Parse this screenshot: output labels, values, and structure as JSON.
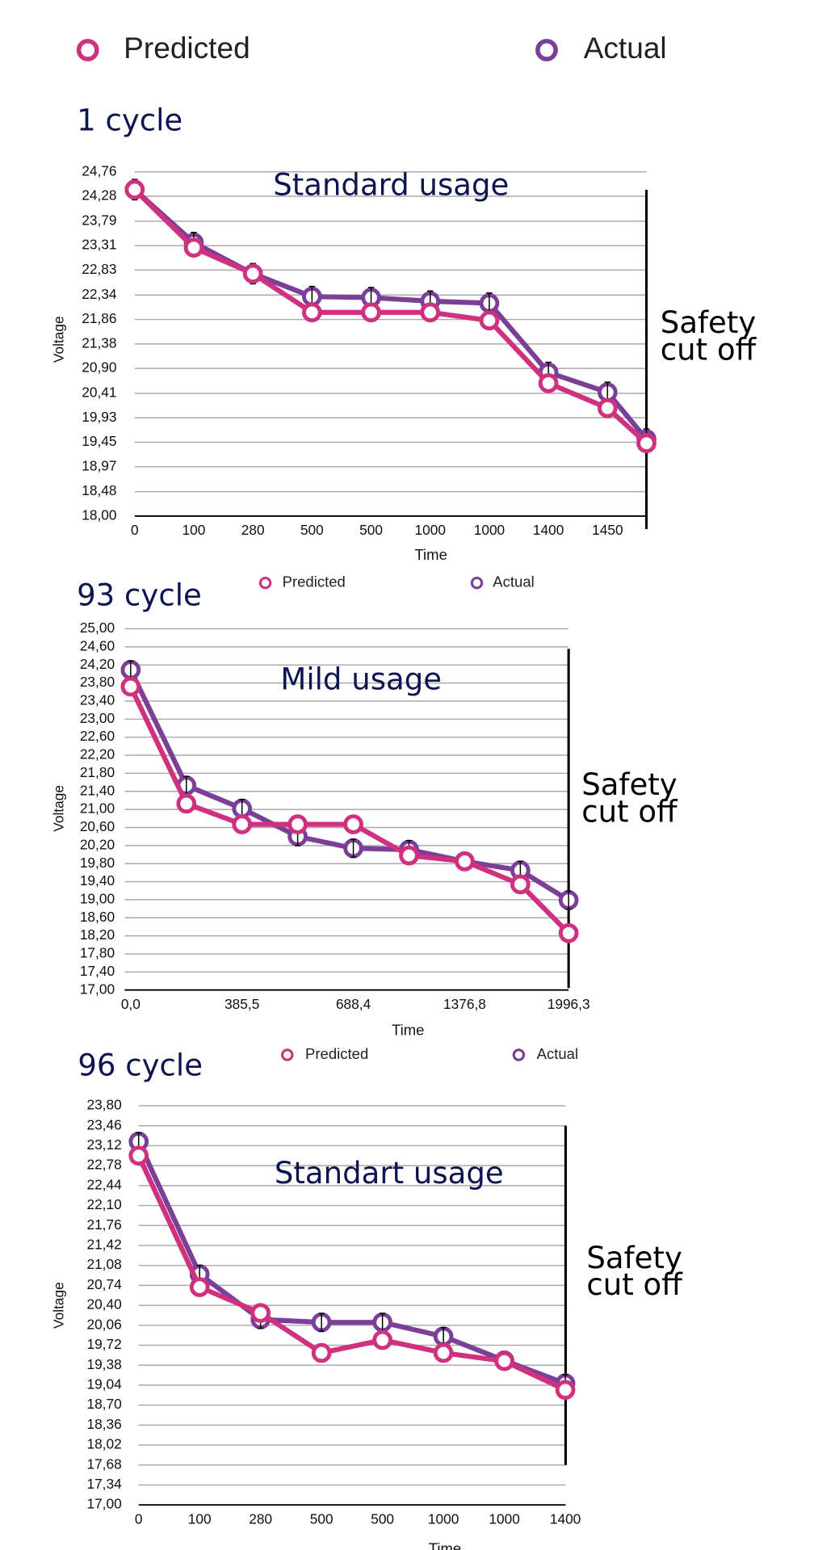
{
  "chart_data": [
    {
      "type": "line",
      "title": "1 cycle",
      "annotation": "Standard usage",
      "side_annotation": [
        "Safety",
        "cut off"
      ],
      "x_label": "Time",
      "y_label": "Voltage",
      "categories": [
        "0",
        "100",
        "280",
        "500",
        "500",
        "1000",
        "1000",
        "1400",
        "1450",
        null
      ],
      "ylim": [
        18,
        24.76
      ],
      "yticks": [
        {
          "value": 18,
          "label": "18,00"
        },
        {
          "value": 18.48,
          "label": "18,48"
        },
        {
          "value": 18.97,
          "label": "18,97"
        },
        {
          "value": 19.45,
          "label": "19,45"
        },
        {
          "value": 19.93,
          "label": "19,93"
        },
        {
          "value": 20.41,
          "label": "20,41"
        },
        {
          "value": 20.9,
          "label": "20,90"
        },
        {
          "value": 21.38,
          "label": "21,38"
        },
        {
          "value": 21.86,
          "label": "21,86"
        },
        {
          "value": 22.34,
          "label": "22,34"
        },
        {
          "value": 22.83,
          "label": "22,83"
        },
        {
          "value": 23.31,
          "label": "23,31"
        },
        {
          "value": 23.79,
          "label": "23,79"
        },
        {
          "value": 24.28,
          "label": "24,28"
        },
        {
          "value": 24.76,
          "label": "24,76"
        }
      ],
      "grid": true,
      "series": [
        {
          "name": "Predicted",
          "color": "#d0317f",
          "values": [
            24.41,
            23.27,
            22.76,
            22.0,
            22.0,
            22.0,
            21.84,
            20.61,
            20.12,
            19.43
          ]
        },
        {
          "name": "Actual",
          "color": "#7b3f98",
          "values": [
            24.41,
            23.37,
            22.76,
            22.31,
            22.29,
            22.22,
            22.18,
            20.82,
            20.43,
            19.51
          ],
          "errors": [
            0.2,
            0.2,
            0.2,
            0.2,
            0.2,
            0.2,
            0.2,
            0.2,
            0.2,
            0.2
          ]
        }
      ]
    },
    {
      "type": "line",
      "title": "93 cycle",
      "annotation": "Mild usage",
      "side_annotation": [
        "Safety",
        "cut off"
      ],
      "x_label": "Time",
      "y_label": "Voltage",
      "categories": [
        "0,0",
        null,
        "385,5",
        null,
        "688,4",
        null,
        "1376,8",
        null,
        "1996,3"
      ],
      "ylim": [
        17,
        25
      ],
      "yticks": [
        {
          "value": 17,
          "label": "17,00"
        },
        {
          "value": 17.4,
          "label": "17,40"
        },
        {
          "value": 17.8,
          "label": "17,80"
        },
        {
          "value": 18.2,
          "label": "18,20"
        },
        {
          "value": 18.6,
          "label": "18,60"
        },
        {
          "value": 19,
          "label": "19,00"
        },
        {
          "value": 19.4,
          "label": "19,40"
        },
        {
          "value": 19.8,
          "label": "19,80"
        },
        {
          "value": 20.2,
          "label": "20,20"
        },
        {
          "value": 20.6,
          "label": "20,60"
        },
        {
          "value": 21,
          "label": "21,00"
        },
        {
          "value": 21.4,
          "label": "21,40"
        },
        {
          "value": 21.8,
          "label": "21,80"
        },
        {
          "value": 22.2,
          "label": "22,20"
        },
        {
          "value": 22.6,
          "label": "22,60"
        },
        {
          "value": 23,
          "label": "23,00"
        },
        {
          "value": 23.4,
          "label": "23,40"
        },
        {
          "value": 23.8,
          "label": "23,80"
        },
        {
          "value": 24.2,
          "label": "24,20"
        },
        {
          "value": 24.6,
          "label": "24,60"
        },
        {
          "value": 25,
          "label": "25,00"
        }
      ],
      "grid": true,
      "series": [
        {
          "name": "Predicted",
          "color": "#d0317f",
          "values": [
            23.72,
            21.13,
            20.67,
            20.67,
            20.67,
            19.98,
            19.85,
            19.34,
            18.26
          ]
        },
        {
          "name": "Actual",
          "color": "#7b3f98",
          "values": [
            24.09,
            21.53,
            21.02,
            20.4,
            20.14,
            20.11,
            19.85,
            19.65,
            18.99
          ],
          "errors": [
            0.2,
            0.2,
            0.2,
            0.2,
            0.2,
            0.2,
            0.2,
            0.2,
            0.2
          ]
        }
      ]
    },
    {
      "type": "line",
      "title": "96 cycle",
      "annotation": "Standart usage",
      "side_annotation": [
        "Safety",
        "cut off"
      ],
      "x_label": "Time",
      "y_label": "Voltage",
      "categories": [
        "0",
        "100",
        "280",
        "500",
        "500",
        "1000",
        "1000",
        "1400"
      ],
      "ylim": [
        17,
        23.8
      ],
      "yticks": [
        {
          "value": 17,
          "label": "17,00"
        },
        {
          "value": 17.34,
          "label": "17,34"
        },
        {
          "value": 17.68,
          "label": "17,68"
        },
        {
          "value": 18.02,
          "label": "18,02"
        },
        {
          "value": 18.36,
          "label": "18,36"
        },
        {
          "value": 18.7,
          "label": "18,70"
        },
        {
          "value": 19.04,
          "label": "19,04"
        },
        {
          "value": 19.38,
          "label": "19,38"
        },
        {
          "value": 19.72,
          "label": "19,72"
        },
        {
          "value": 20.06,
          "label": "20,06"
        },
        {
          "value": 20.4,
          "label": "20,40"
        },
        {
          "value": 20.74,
          "label": "20,74"
        },
        {
          "value": 21.08,
          "label": "21,08"
        },
        {
          "value": 21.42,
          "label": "21,42"
        },
        {
          "value": 21.76,
          "label": "21,76"
        },
        {
          "value": 22.1,
          "label": "22,10"
        },
        {
          "value": 22.44,
          "label": "22,44"
        },
        {
          "value": 22.78,
          "label": "22,78"
        },
        {
          "value": 23.12,
          "label": "23,12"
        },
        {
          "value": 23.46,
          "label": "23,46"
        },
        {
          "value": 23.8,
          "label": "23,80"
        }
      ],
      "grid": true,
      "series": [
        {
          "name": "Predicted",
          "color": "#d0317f",
          "values": [
            22.95,
            20.71,
            20.27,
            19.59,
            19.81,
            19.59,
            19.45,
            18.96
          ]
        },
        {
          "name": "Actual",
          "color": "#7b3f98",
          "values": [
            23.19,
            20.93,
            20.16,
            20.11,
            20.11,
            19.87,
            19.46,
            19.07
          ],
          "errors": [
            0.15,
            0.15,
            0.15,
            0.15,
            0.15,
            0.15,
            0.15,
            0.15
          ]
        }
      ]
    }
  ]
}
